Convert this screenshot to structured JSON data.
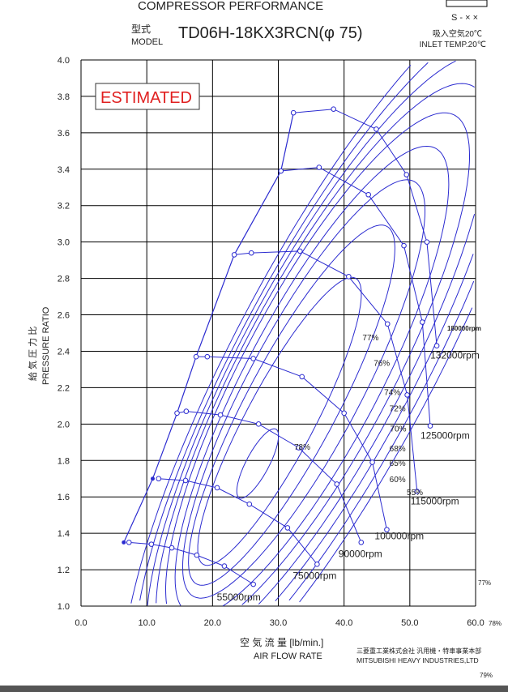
{
  "header": {
    "title": "COMPRESSOR PERFORMANCE",
    "model_label_jp": "型式",
    "model_label": "MODEL",
    "model": "TD06H-18KX3RCN(φ 75)",
    "code": "S - × ×",
    "inlet_jp": "吸入空気20℃",
    "inlet": "INLET TEMP.20℃",
    "estimated": "ESTIMATED",
    "maker_jp": "三菱重工業株式会社  汎用機・特車事業本部",
    "maker": "MITSUBISHI  HEAVY  INDUSTRIES,LTD",
    "stray_labels": [
      "180000rpm",
      "77%",
      "78%",
      "79%"
    ]
  },
  "colors": {
    "curve": "#2b2bd0",
    "grid": "#000000",
    "estimated": "#e02020"
  },
  "chart_data": {
    "type": "line",
    "title": "COMPRESSOR PERFORMANCE",
    "xlabel_jp": "空 気 流 量 [lb/min.]",
    "xlabel": "AIR FLOW  RATE",
    "ylabel_jp": "給 気 圧 力 比",
    "ylabel": "PRESSURE  RATIO",
    "xlim": [
      0,
      60
    ],
    "ylim": [
      1.0,
      4.0
    ],
    "xticks": [
      "0.0",
      "10.0",
      "20.0",
      "30.0",
      "40.0",
      "50.0",
      "60.0"
    ],
    "yticks": [
      "1.0",
      "1.2",
      "1.4",
      "1.6",
      "1.8",
      "2.0",
      "2.2",
      "2.4",
      "2.6",
      "2.8",
      "3.0",
      "3.2",
      "3.4",
      "3.6",
      "3.8",
      "4.0"
    ],
    "grid": true,
    "surge_line": [
      [
        6.5,
        1.35
      ],
      [
        10.9,
        1.7
      ],
      [
        14.6,
        2.06
      ],
      [
        17.5,
        2.37
      ],
      [
        23.3,
        2.93
      ],
      [
        30.4,
        3.39
      ],
      [
        32.3,
        3.71
      ]
    ],
    "speed_lines": [
      {
        "name": "55000rpm",
        "points": [
          [
            7.3,
            1.35
          ],
          [
            10.7,
            1.34
          ],
          [
            13.8,
            1.32
          ],
          [
            17.6,
            1.28
          ],
          [
            21.8,
            1.22
          ],
          [
            26.2,
            1.12
          ]
        ]
      },
      {
        "name": "75000rpm",
        "points": [
          [
            11.8,
            1.7
          ],
          [
            15.9,
            1.69
          ],
          [
            20.7,
            1.65
          ],
          [
            25.6,
            1.56
          ],
          [
            31.4,
            1.43
          ],
          [
            35.9,
            1.23
          ]
        ]
      },
      {
        "name": "90000rpm",
        "points": [
          [
            14.6,
            2.06
          ],
          [
            16.0,
            2.07
          ],
          [
            21.2,
            2.05
          ],
          [
            27.0,
            2.0
          ],
          [
            33.1,
            1.87
          ],
          [
            38.9,
            1.67
          ],
          [
            42.6,
            1.35
          ]
        ]
      },
      {
        "name": "100000rpm",
        "points": [
          [
            17.5,
            2.37
          ],
          [
            19.2,
            2.37
          ],
          [
            26.2,
            2.36
          ],
          [
            33.6,
            2.26
          ],
          [
            40.0,
            2.06
          ],
          [
            44.3,
            1.79
          ],
          [
            46.5,
            1.42
          ]
        ]
      },
      {
        "name": "115000rpm",
        "points": [
          [
            23.3,
            2.93
          ],
          [
            25.9,
            2.94
          ],
          [
            33.3,
            2.95
          ],
          [
            40.7,
            2.81
          ],
          [
            46.6,
            2.55
          ],
          [
            49.6,
            2.16
          ],
          [
            51.1,
            1.63
          ]
        ]
      },
      {
        "name": "125000rpm",
        "points": [
          [
            30.4,
            3.39
          ],
          [
            36.2,
            3.41
          ],
          [
            43.7,
            3.26
          ],
          [
            49.1,
            2.98
          ],
          [
            51.9,
            2.56
          ],
          [
            53.1,
            1.99
          ]
        ]
      },
      {
        "name": "132000rpm",
        "points": [
          [
            32.3,
            3.71
          ],
          [
            38.4,
            3.73
          ],
          [
            44.9,
            3.62
          ],
          [
            49.5,
            3.37
          ],
          [
            52.6,
            3.0
          ],
          [
            54.1,
            2.43
          ]
        ]
      }
    ],
    "efficiency_islands": [
      {
        "label": "78%",
        "at": [
          32.4,
          1.86
        ]
      },
      {
        "label": "77%",
        "at": [
          42.8,
          2.46
        ]
      },
      {
        "label": "76%",
        "at": [
          44.5,
          2.32
        ]
      },
      {
        "label": "74%",
        "at": [
          46.1,
          2.16
        ]
      },
      {
        "label": "72%",
        "at": [
          46.9,
          2.07
        ]
      },
      {
        "label": "70%",
        "at": [
          47.0,
          1.96
        ]
      },
      {
        "label": "68%",
        "at": [
          46.9,
          1.85
        ]
      },
      {
        "label": "65%",
        "at": [
          46.9,
          1.77
        ]
      },
      {
        "label": "60%",
        "at": [
          46.9,
          1.68
        ]
      },
      {
        "label": "55%",
        "at": [
          48.3,
          1.64
        ]
      }
    ]
  }
}
